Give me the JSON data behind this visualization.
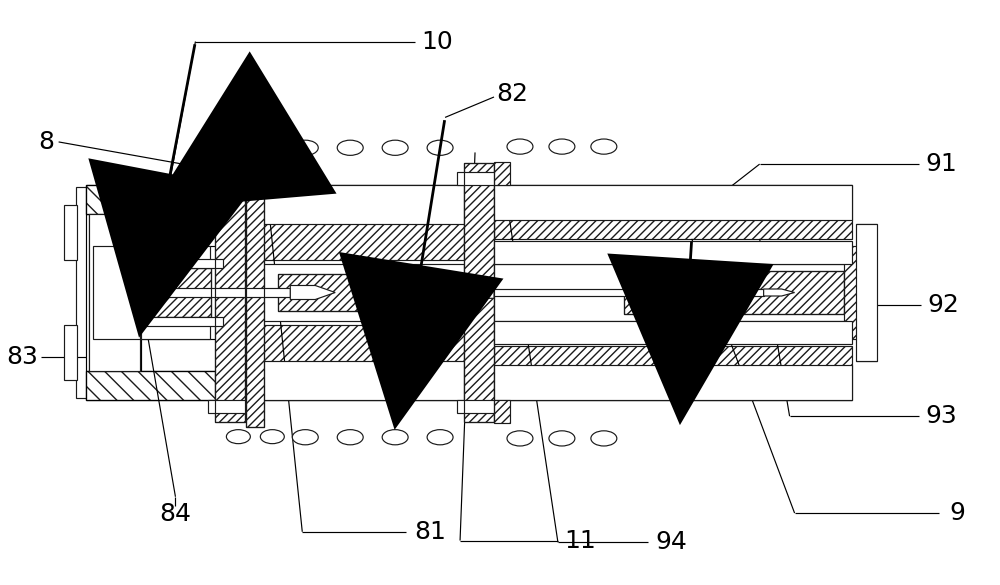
{
  "bg_color": "#ffffff",
  "line_color": "#1a1a1a",
  "label_fontsize": 18,
  "fig_width": 10.0,
  "fig_height": 5.85,
  "dpi": 100
}
